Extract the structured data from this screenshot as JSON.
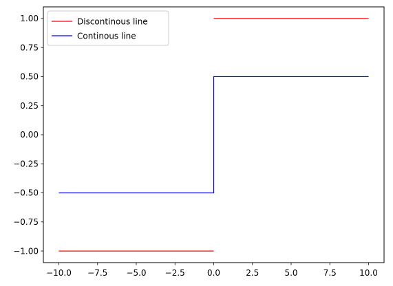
{
  "chart_data": {
    "type": "line",
    "title": "",
    "xlabel": "",
    "ylabel": "",
    "xlim": [
      -11.0,
      11.0
    ],
    "ylim": [
      -1.1,
      1.1
    ],
    "xticks": [
      -10.0,
      -7.5,
      -5.0,
      -2.5,
      0.0,
      2.5,
      5.0,
      7.5,
      10.0
    ],
    "xtick_labels": [
      "−10.0",
      "−7.5",
      "−5.0",
      "−2.5",
      "0.0",
      "2.5",
      "5.0",
      "7.5",
      "10.0"
    ],
    "yticks": [
      -1.0,
      -0.75,
      -0.5,
      -0.25,
      0.0,
      0.25,
      0.5,
      0.75,
      1.0
    ],
    "ytick_labels": [
      "−1.00",
      "−0.75",
      "−0.50",
      "−0.25",
      "0.00",
      "0.25",
      "0.50",
      "0.75",
      "1.00"
    ],
    "grid": false,
    "legend": "upper-left",
    "series": [
      {
        "name": "Discontinous line",
        "color": "#ff0000",
        "segments": [
          [
            [
              -10.0,
              -1.0
            ],
            [
              0.0,
              -1.0
            ]
          ],
          [
            [
              0.0,
              1.0
            ],
            [
              10.0,
              1.0
            ]
          ]
        ]
      },
      {
        "name": "Continous line",
        "color": "#0000ff",
        "segments": [
          [
            [
              -10.0,
              -0.5
            ],
            [
              0.0,
              -0.5
            ],
            [
              0.0,
              0.5
            ],
            [
              10.0,
              0.5
            ]
          ]
        ]
      }
    ]
  }
}
